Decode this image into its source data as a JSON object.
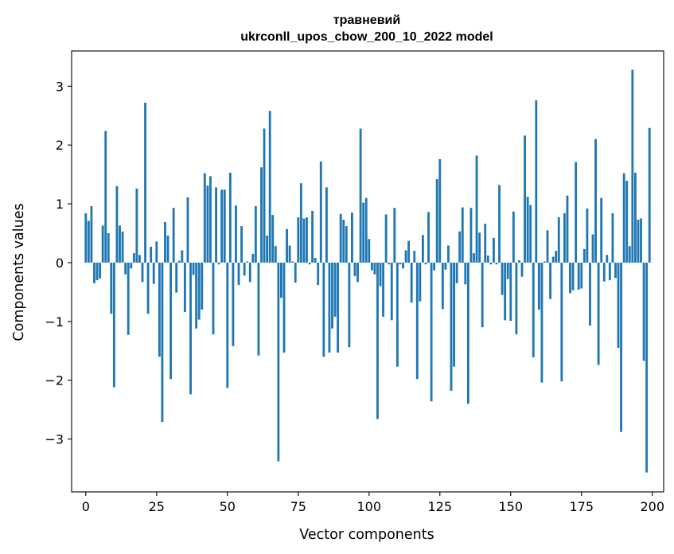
{
  "chart_data": {
    "type": "bar",
    "title": "травневий",
    "subtitle": "ukrconll_upos_cbow_200_10_2022 model",
    "xlabel": "Vector components",
    "ylabel": "Components values",
    "xlim": [
      -5,
      204
    ],
    "ylim": [
      -3.9,
      3.6
    ],
    "xticks": [
      0,
      25,
      50,
      75,
      100,
      125,
      150,
      175,
      200
    ],
    "yticks": [
      -3,
      -2,
      -1,
      0,
      1,
      2,
      3
    ],
    "xtick_labels": [
      "0",
      "25",
      "50",
      "75",
      "100",
      "125",
      "150",
      "175",
      "200"
    ],
    "ytick_labels": [
      "−3",
      "−2",
      "−1",
      "0",
      "1",
      "2",
      "3"
    ],
    "grid": false,
    "bar_color": "#1f77b4",
    "values": [
      0.84,
      0.71,
      0.96,
      -0.35,
      -0.3,
      -0.27,
      0.63,
      2.24,
      0.5,
      -0.87,
      -2.12,
      1.3,
      0.63,
      0.53,
      -0.2,
      -1.23,
      -0.1,
      0.16,
      1.26,
      0.13,
      -0.33,
      2.72,
      -0.87,
      0.27,
      -0.36,
      0.36,
      -1.6,
      -2.71,
      0.69,
      0.46,
      -1.98,
      0.93,
      -0.51,
      0.03,
      0.21,
      -0.84,
      1.11,
      -2.24,
      -0.21,
      -1.12,
      -0.97,
      -0.8,
      1.52,
      1.31,
      1.47,
      -1.22,
      1.28,
      -0.03,
      1.24,
      1.24,
      -2.13,
      1.53,
      -1.42,
      0.97,
      -0.38,
      0.62,
      -0.22,
      0.02,
      -0.33,
      0.15,
      0.96,
      -1.58,
      1.62,
      2.28,
      0.46,
      2.58,
      0.81,
      0.28,
      -3.38,
      -0.6,
      -1.53,
      0.57,
      0.29,
      0.02,
      -0.34,
      0.77,
      1.35,
      0.75,
      0.77,
      -0.03,
      0.88,
      0.08,
      -0.38,
      1.72,
      -1.6,
      1.28,
      -1.53,
      -1.12,
      -0.92,
      -1.53,
      0.83,
      0.73,
      0.62,
      -1.44,
      0.85,
      -0.23,
      -0.33,
      2.28,
      1.02,
      1.1,
      0.4,
      -0.13,
      -0.2,
      -2.66,
      -0.4,
      -0.92,
      0.82,
      -0.03,
      -0.98,
      0.93,
      -1.77,
      -0.03,
      -0.1,
      0.21,
      0.37,
      -0.68,
      0.2,
      -1.98,
      -0.66,
      0.47,
      -0.03,
      0.86,
      -2.36,
      -0.13,
      1.42,
      1.76,
      -0.79,
      -0.12,
      0.29,
      -2.18,
      -1.77,
      -0.35,
      0.53,
      0.94,
      -0.37,
      -2.4,
      0.93,
      0.16,
      1.82,
      0.51,
      -1.1,
      0.66,
      0.12,
      -0.03,
      0.42,
      -0.03,
      1.32,
      -0.55,
      -0.98,
      -0.28,
      -0.99,
      0.87,
      -1.22,
      0.04,
      -0.24,
      2.16,
      1.12,
      0.98,
      -1.61,
      2.76,
      -0.8,
      -2.04,
      0.02,
      0.55,
      -0.62,
      0.1,
      0.2,
      0.77,
      -2.02,
      0.84,
      1.14,
      -0.52,
      -0.47,
      1.71,
      -0.46,
      -0.44,
      0.23,
      0.92,
      -1.07,
      0.48,
      2.1,
      -1.74,
      1.1,
      -0.32,
      0.13,
      -0.3,
      0.84,
      -0.26,
      -1.45,
      -2.88,
      1.52,
      1.39,
      0.28,
      3.28,
      1.53,
      0.73,
      0.75,
      -1.67,
      -3.57,
      2.29
    ]
  }
}
